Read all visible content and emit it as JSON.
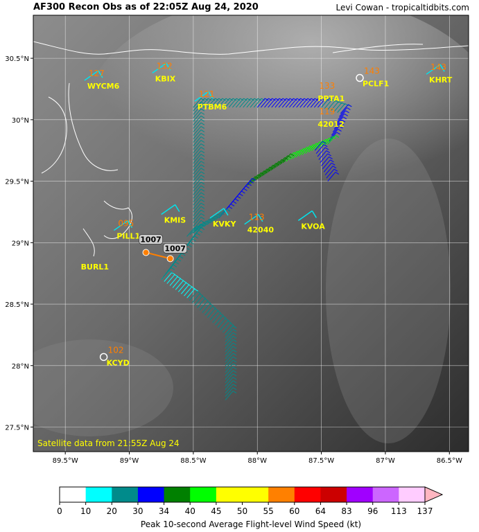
{
  "header": {
    "title": "AF300 Recon Obs as of 22:05Z Aug 24, 2020",
    "credit": "Levi Cowan - tropicaltidbits.com"
  },
  "satellite_note": "Satellite data from 21:55Z Aug 24",
  "map": {
    "lon_range": [
      -89.75,
      -86.35
    ],
    "lat_range": [
      27.3,
      30.85
    ],
    "lon_ticks": [
      {
        "value": -89.5,
        "label": "89.5°W"
      },
      {
        "value": -89.0,
        "label": "89°W"
      },
      {
        "value": -88.5,
        "label": "88.5°W"
      },
      {
        "value": -88.0,
        "label": "88°W"
      },
      {
        "value": -87.5,
        "label": "87.5°W"
      },
      {
        "value": -87.0,
        "label": "87°W"
      },
      {
        "value": -86.5,
        "label": "86.5°W"
      }
    ],
    "lat_ticks": [
      {
        "value": 30.5,
        "label": "30.5°N"
      },
      {
        "value": 30.0,
        "label": "30°N"
      },
      {
        "value": 29.5,
        "label": "29.5°N"
      },
      {
        "value": 29.0,
        "label": "29°N"
      },
      {
        "value": 28.5,
        "label": "28.5°N"
      },
      {
        "value": 28.0,
        "label": "28°N"
      },
      {
        "value": 27.5,
        "label": "27.5°N"
      }
    ],
    "grid": true,
    "stations": [
      {
        "id": "WYCM6",
        "lon": -89.35,
        "lat": 30.32,
        "wind": "127",
        "barb": "cyan"
      },
      {
        "id": "KBIX",
        "lon": -88.82,
        "lat": 30.38,
        "wind": "132",
        "barb": "cyan"
      },
      {
        "id": "PTBM6",
        "lon": -88.49,
        "lat": 30.15,
        "wind": "121",
        "barb": "cyan"
      },
      {
        "id": "PPTA1",
        "lon": -87.55,
        "lat": 30.22,
        "wind": "133",
        "barb": "none"
      },
      {
        "id": "42012",
        "lon": -87.55,
        "lat": 30.01,
        "wind": "119",
        "barb": "none"
      },
      {
        "id": "PCLF1",
        "lon": -87.2,
        "lat": 30.34,
        "wind": "143",
        "barb": "circle"
      },
      {
        "id": "KHRT",
        "lon": -86.68,
        "lat": 30.37,
        "wind": "143",
        "barb": "cyan"
      },
      {
        "id": "KMIS",
        "lon": -88.75,
        "lat": 29.23,
        "wind": "",
        "barb": "cyan"
      },
      {
        "id": "KVKY",
        "lon": -88.37,
        "lat": 29.2,
        "wind": "",
        "barb": "cyan"
      },
      {
        "id": "42040",
        "lon": -88.1,
        "lat": 29.15,
        "wind": "113",
        "barb": "cyan"
      },
      {
        "id": "KVOA",
        "lon": -87.68,
        "lat": 29.18,
        "wind": "",
        "barb": "cyan"
      },
      {
        "id": "PILL1",
        "lon": -89.12,
        "lat": 29.1,
        "wind": "095",
        "barb": "cyan"
      },
      {
        "id": "BURL1",
        "lon": -89.4,
        "lat": 28.85,
        "wind": "",
        "barb": "none"
      },
      {
        "id": "KCYD",
        "lon": -89.2,
        "lat": 28.07,
        "wind": "102",
        "barb": "circle"
      }
    ],
    "pressure_obs": [
      {
        "label": "1007",
        "lon": -88.87,
        "lat": 28.92
      },
      {
        "label": "1007",
        "lon": -88.68,
        "lat": 28.87
      }
    ],
    "flight_track": {
      "legs": [
        {
          "from": [
            -88.25,
            27.72
          ],
          "to": [
            -88.25,
            28.25
          ],
          "cat": "20"
        },
        {
          "from": [
            -88.25,
            28.25
          ],
          "to": [
            -88.55,
            28.55
          ],
          "cat": "20"
        },
        {
          "from": [
            -88.55,
            28.55
          ],
          "to": [
            -88.75,
            28.7
          ],
          "cat": "10"
        },
        {
          "from": [
            -88.75,
            28.7
          ],
          "to": [
            -88.5,
            29.05
          ],
          "cat": "20"
        },
        {
          "from": [
            -88.5,
            29.05
          ],
          "to": [
            -88.5,
            30.1
          ],
          "cat": "20"
        },
        {
          "from": [
            -88.5,
            30.1
          ],
          "to": [
            -88.0,
            30.1
          ],
          "cat": "20"
        },
        {
          "from": [
            -88.0,
            30.1
          ],
          "to": [
            -87.5,
            30.1
          ],
          "cat": "30"
        },
        {
          "from": [
            -87.5,
            30.1
          ],
          "to": [
            -87.35,
            30.05
          ],
          "cat": "20"
        },
        {
          "from": [
            -87.35,
            30.05
          ],
          "to": [
            -87.45,
            29.8
          ],
          "cat": "30"
        },
        {
          "from": [
            -87.45,
            29.8
          ],
          "to": [
            -87.8,
            29.65
          ],
          "cat": "40"
        },
        {
          "from": [
            -87.8,
            29.65
          ],
          "to": [
            -88.1,
            29.45
          ],
          "cat": "34"
        },
        {
          "from": [
            -88.1,
            29.45
          ],
          "to": [
            -88.3,
            29.2
          ],
          "cat": "30"
        },
        {
          "from": [
            -88.3,
            29.2
          ],
          "to": [
            -88.55,
            29.05
          ],
          "cat": "20"
        },
        {
          "from": [
            -87.55,
            29.75
          ],
          "to": [
            -87.45,
            29.5
          ],
          "cat": "30"
        }
      ]
    }
  },
  "colorbar": {
    "label": "Peak 10-second Average Flight-level Wind Speed (kt)",
    "ticks": [
      "0",
      "10",
      "20",
      "30",
      "34",
      "40",
      "45",
      "50",
      "55",
      "60",
      "64",
      "83",
      "96",
      "113",
      "137"
    ],
    "colors": [
      "#ffffff",
      "#00ffff",
      "#008b8b",
      "#0000ff",
      "#008000",
      "#00ff00",
      "#ffff00",
      "#ffff00",
      "#ff8000",
      "#ff0000",
      "#cc0000",
      "#a000ff",
      "#cc66ff",
      "#ffccff",
      "#ffb6c1"
    ]
  },
  "colors": {
    "station_id": "#ffff00",
    "wind_value": "#ff7f00",
    "coast": "#ffffff",
    "barb_cyan": "#00e5ee",
    "pressure_dot": "#ff7f00"
  }
}
